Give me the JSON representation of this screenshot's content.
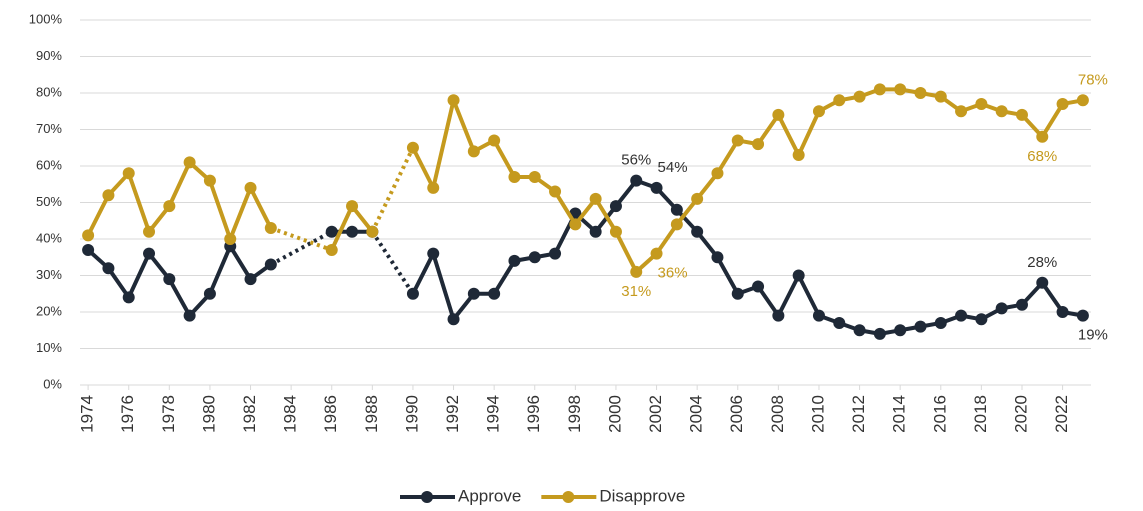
{
  "chart_data": {
    "type": "line",
    "x": [
      1974,
      1975,
      1976,
      1977,
      1978,
      1979,
      1980,
      1981,
      1982,
      1983,
      1986,
      1987,
      1988,
      1990,
      1991,
      1992,
      1993,
      1994,
      1995,
      1996,
      1997,
      1998,
      1999,
      2000,
      2001,
      2002,
      2003,
      2004,
      2005,
      2006,
      2007,
      2008,
      2009,
      2010,
      2011,
      2012,
      2013,
      2014,
      2015,
      2016,
      2017,
      2018,
      2019,
      2020,
      2021,
      2022,
      2023
    ],
    "series": [
      {
        "name": "Approve",
        "color": "#1f2937",
        "values": [
          37,
          32,
          24,
          36,
          29,
          19,
          25,
          38,
          29,
          33,
          42,
          42,
          42,
          25,
          36,
          18,
          25,
          25,
          34,
          35,
          36,
          47,
          42,
          49,
          56,
          54,
          48,
          42,
          35,
          25,
          27,
          19,
          30,
          19,
          17,
          15,
          14,
          15,
          16,
          17,
          19,
          18,
          21,
          22,
          28,
          20,
          19
        ],
        "value_labels": [
          null,
          null,
          null,
          null,
          null,
          null,
          null,
          null,
          null,
          null,
          null,
          null,
          null,
          null,
          null,
          null,
          null,
          null,
          null,
          null,
          null,
          null,
          null,
          null,
          "56%",
          "54%",
          null,
          null,
          null,
          null,
          null,
          null,
          null,
          null,
          null,
          null,
          null,
          null,
          null,
          null,
          null,
          null,
          null,
          null,
          "28%",
          null,
          "19%"
        ]
      },
      {
        "name": "Disapprove",
        "color": "#c59a1e",
        "values": [
          41,
          52,
          58,
          42,
          49,
          61,
          56,
          40,
          54,
          43,
          37,
          49,
          42,
          65,
          54,
          78,
          64,
          67,
          57,
          57,
          53,
          44,
          51,
          42,
          31,
          36,
          44,
          51,
          58,
          67,
          66,
          74,
          63,
          75,
          78,
          79,
          81,
          81,
          80,
          79,
          75,
          77,
          75,
          74,
          68,
          77,
          78
        ],
        "value_labels": [
          null,
          null,
          null,
          null,
          null,
          null,
          null,
          null,
          null,
          null,
          null,
          null,
          null,
          null,
          null,
          null,
          null,
          null,
          null,
          null,
          null,
          null,
          null,
          null,
          "31%",
          "36%",
          null,
          null,
          null,
          null,
          null,
          null,
          null,
          null,
          null,
          null,
          null,
          null,
          null,
          null,
          null,
          null,
          null,
          null,
          "68%",
          null,
          "78%"
        ]
      }
    ],
    "xlim": [
      1973.6,
      2023.4
    ],
    "xticks": [
      1974,
      1976,
      1978,
      1980,
      1982,
      1984,
      1986,
      1988,
      1990,
      1992,
      1994,
      1996,
      1998,
      2000,
      2002,
      2004,
      2006,
      2008,
      2010,
      2012,
      2014,
      2016,
      2018,
      2020,
      2022
    ],
    "ylim": [
      0,
      100
    ],
    "yticks": [
      {
        "value": 0,
        "label": "0%"
      },
      {
        "value": 10,
        "label": "10%"
      },
      {
        "value": 20,
        "label": "20%"
      },
      {
        "value": 30,
        "label": "30%"
      },
      {
        "value": 40,
        "label": "40%"
      },
      {
        "value": 50,
        "label": "50%"
      },
      {
        "value": 60,
        "label": "60%"
      },
      {
        "value": 70,
        "label": "70%"
      },
      {
        "value": 80,
        "label": "80%"
      },
      {
        "value": 90,
        "label": "90%"
      },
      {
        "value": 100,
        "label": "100%"
      }
    ],
    "grid": true,
    "legend": "bottom"
  }
}
